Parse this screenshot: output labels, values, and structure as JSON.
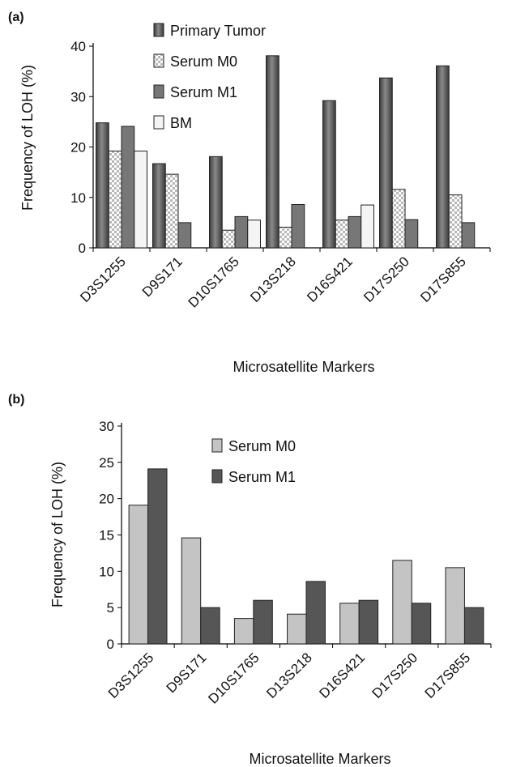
{
  "chart_data": [
    {
      "panel_label": "(a)",
      "type": "bar",
      "categories": [
        "D3S1255",
        "D9S171",
        "D10S1765",
        "D13S218",
        "D16S421",
        "D17S250",
        "D17S855"
      ],
      "series": [
        {
          "name": "Primary Tumor",
          "values": [
            24.8,
            16.7,
            18.1,
            38.1,
            29.2,
            33.7,
            36.1
          ],
          "color": "#5a5a5a",
          "pattern": "shaded"
        },
        {
          "name": "Serum M0",
          "values": [
            19.2,
            14.6,
            3.5,
            4.1,
            5.5,
            11.6,
            10.5
          ],
          "color": "#d9d9d9",
          "pattern": "checker"
        },
        {
          "name": "Serum M1",
          "values": [
            24.1,
            5.0,
            6.2,
            8.6,
            6.2,
            5.6,
            5.0
          ],
          "color": "#777777",
          "pattern": "solid"
        },
        {
          "name": "BM",
          "values": [
            19.2,
            0,
            5.5,
            0,
            8.5,
            0,
            0
          ],
          "color": "#f4f4f4",
          "pattern": "light"
        }
      ],
      "xlabel": "Microsatellite Markers",
      "ylabel": "Frequency of LOH (%)",
      "ylim": [
        0,
        40
      ],
      "yticks": [
        0,
        10,
        20,
        30,
        40
      ],
      "grid": false,
      "legend_position": "top-center"
    },
    {
      "panel_label": "(b)",
      "type": "bar",
      "categories": [
        "D3S1255",
        "D9S171",
        "D10S1765",
        "D13S218",
        "D16S421",
        "D17S250",
        "D17S855"
      ],
      "series": [
        {
          "name": "Serum M0",
          "values": [
            19.1,
            14.6,
            3.5,
            4.1,
            5.6,
            11.5,
            10.5
          ],
          "color": "#c4c4c4",
          "pattern": "solid"
        },
        {
          "name": "Serum M1",
          "values": [
            24.1,
            5.0,
            6.0,
            8.6,
            6.0,
            5.6,
            5.0
          ],
          "color": "#565656",
          "pattern": "solid"
        }
      ],
      "xlabel": "Microsatellite Markers",
      "ylabel": "Frequency of LOH (%)",
      "ylim": [
        0,
        30
      ],
      "yticks": [
        0,
        5,
        10,
        15,
        20,
        25,
        30
      ],
      "grid": false,
      "legend_position": "top-center"
    }
  ]
}
